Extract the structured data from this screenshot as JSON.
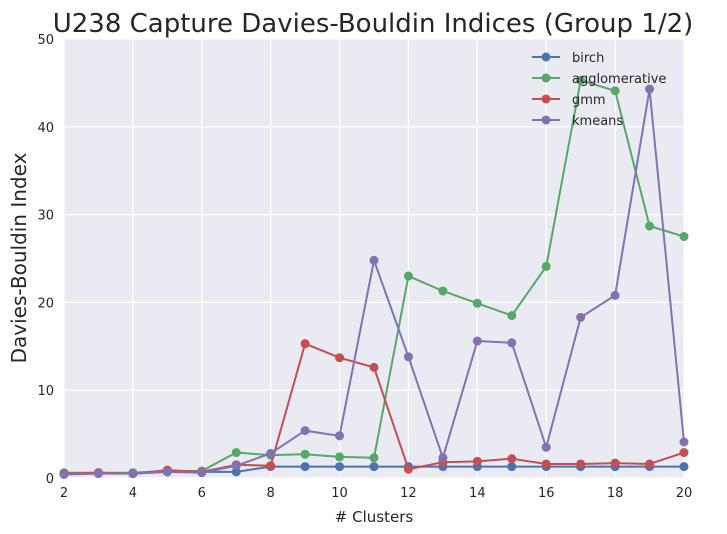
{
  "chart_data": {
    "type": "line",
    "title": "U238 Capture Davies-Bouldin Indices (Group 1/2)",
    "xlabel": "# Clusters",
    "ylabel": "Davies-Bouldin Index",
    "xlim": [
      2,
      20
    ],
    "ylim": [
      0,
      50
    ],
    "xticks": [
      "2",
      "4",
      "6",
      "8",
      "10",
      "12",
      "14",
      "16",
      "18",
      "20"
    ],
    "yticks": [
      "0",
      "10",
      "20",
      "30",
      "40",
      "50"
    ],
    "grid": true,
    "background": "#EAEAF2",
    "legend_position": "top-right",
    "x": [
      2,
      3,
      4,
      5,
      6,
      7,
      8,
      9,
      10,
      11,
      12,
      13,
      14,
      15,
      16,
      17,
      18,
      19,
      20
    ],
    "series": [
      {
        "name": "birch",
        "color": "#4C72B0",
        "values": [
          0.5,
          0.6,
          0.5,
          0.7,
          0.7,
          0.7,
          1.3,
          1.3,
          1.3,
          1.3,
          1.3,
          1.3,
          1.3,
          1.3,
          1.3,
          1.3,
          1.3,
          1.3,
          1.3
        ]
      },
      {
        "name": "agglomerative",
        "color": "#55A868",
        "values": [
          0.6,
          0.6,
          0.6,
          0.8,
          0.8,
          2.9,
          2.6,
          2.7,
          2.4,
          2.3,
          23.0,
          21.3,
          19.9,
          18.5,
          24.1,
          45.3,
          44.1,
          28.7,
          27.5
        ]
      },
      {
        "name": "gmm",
        "color": "#C44E52",
        "values": [
          0.5,
          0.6,
          0.5,
          0.9,
          0.7,
          1.5,
          1.4,
          15.3,
          13.7,
          12.6,
          1.0,
          1.8,
          1.9,
          2.2,
          1.6,
          1.6,
          1.7,
          1.6,
          2.9
        ]
      },
      {
        "name": "kmeans",
        "color": "#8172B2",
        "values": [
          0.4,
          0.5,
          0.5,
          0.7,
          0.6,
          1.4,
          2.8,
          5.4,
          4.8,
          24.8,
          13.8,
          2.3,
          15.6,
          15.4,
          3.5,
          18.3,
          20.8,
          44.3,
          4.1
        ]
      }
    ]
  }
}
